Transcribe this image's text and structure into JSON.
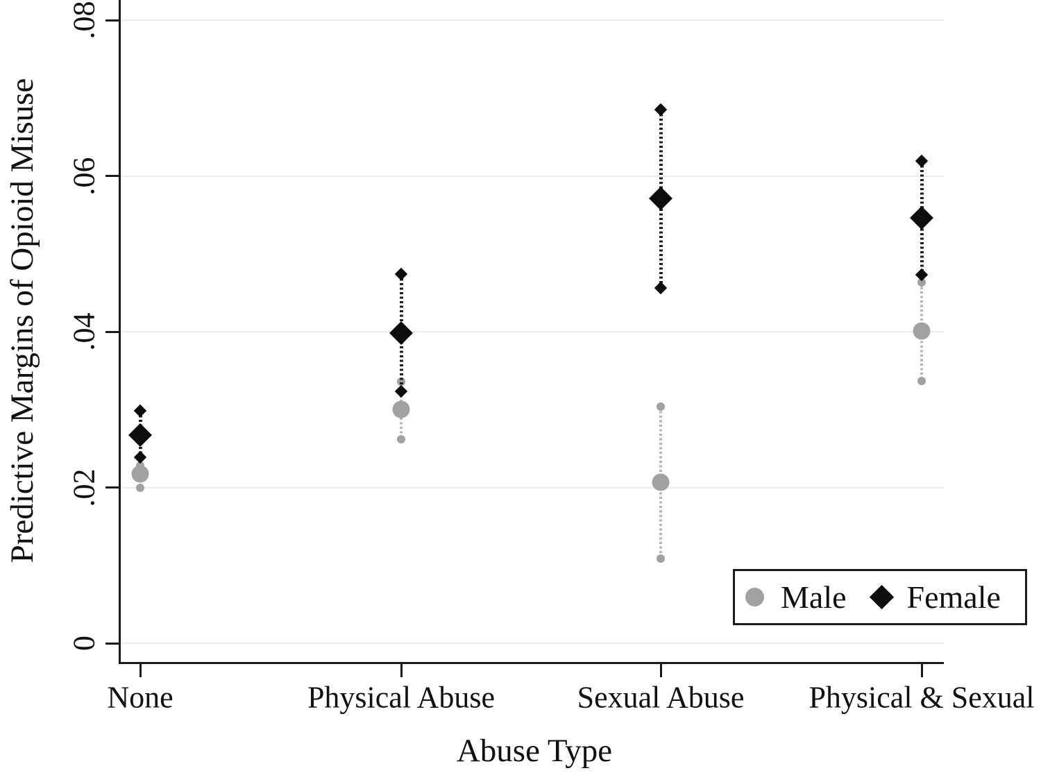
{
  "chart_data": {
    "type": "scatter",
    "title": "",
    "xlabel": "Abuse Type",
    "ylabel": "Predictive Margins of Opioid Misuse",
    "categories": [
      "None",
      "Physical Abuse",
      "Sexual Abuse",
      "Physical & Sexual"
    ],
    "y_axis": {
      "tick_values": [
        0,
        0.02,
        0.04,
        0.06,
        0.08
      ],
      "tick_labels": [
        "0",
        ".02",
        ".04",
        ".06",
        ".08"
      ],
      "range": [
        0,
        0.0825
      ],
      "gridlines": true,
      "gridline_color": "#ececec"
    },
    "axis_color": "#1a1a1a",
    "series": [
      {
        "name": "Male",
        "marker": "circle",
        "color": "#a1a1a1",
        "ci_color": "#b5b5b5",
        "values": [
          0.0217,
          0.03,
          0.0207,
          0.0401
        ],
        "ci_low": [
          0.02,
          0.0262,
          0.0109,
          0.0337
        ],
        "ci_high": [
          0.0228,
          0.0336,
          0.0304,
          0.0463
        ]
      },
      {
        "name": "Female",
        "marker": "diamond",
        "color": "#0d0d0d",
        "ci_color": "#1f1f1f",
        "values": [
          0.0267,
          0.0398,
          0.0571,
          0.0546
        ],
        "ci_low": [
          0.0239,
          0.0323,
          0.0456,
          0.0473
        ],
        "ci_high": [
          0.0298,
          0.0474,
          0.0685,
          0.0619
        ]
      }
    ],
    "legend": {
      "position": "bottom-right",
      "entries": [
        "Male",
        "Female"
      ]
    }
  }
}
